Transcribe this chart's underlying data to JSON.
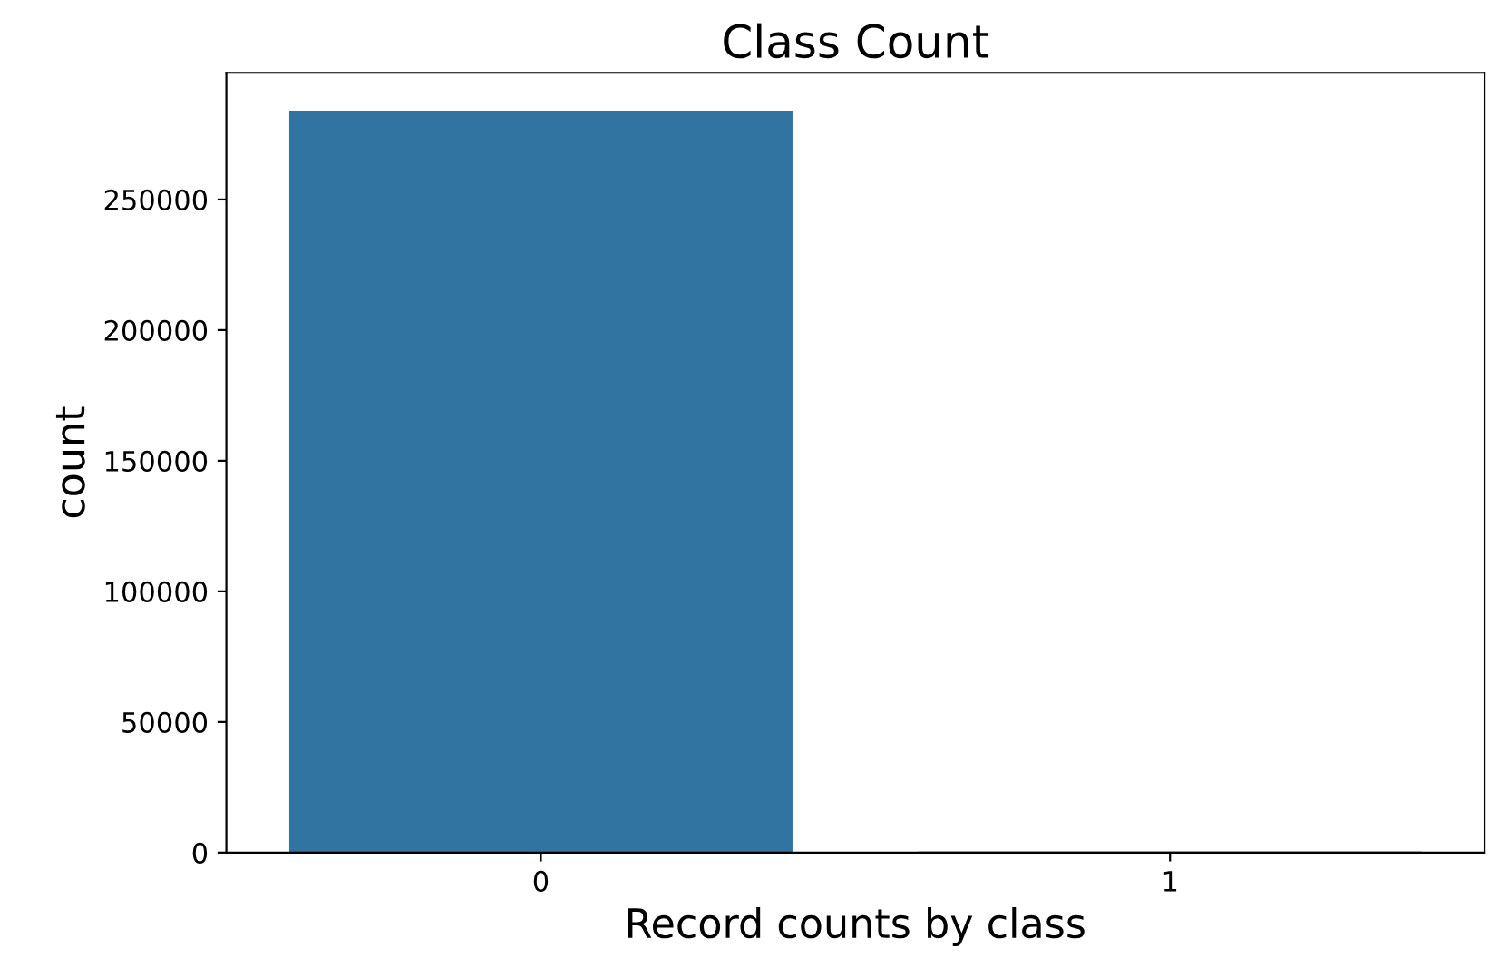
{
  "chart_data": {
    "type": "bar",
    "title": "Class Count",
    "xlabel": "Record counts by class",
    "ylabel": "count",
    "categories": [
      "0",
      "1"
    ],
    "values": [
      284000,
      500
    ],
    "colors": [
      "#3274a1",
      "#e1812c"
    ],
    "ylim": [
      0,
      298500
    ],
    "yticks": [
      0,
      50000,
      100000,
      150000,
      200000,
      250000
    ],
    "grid": false
  }
}
